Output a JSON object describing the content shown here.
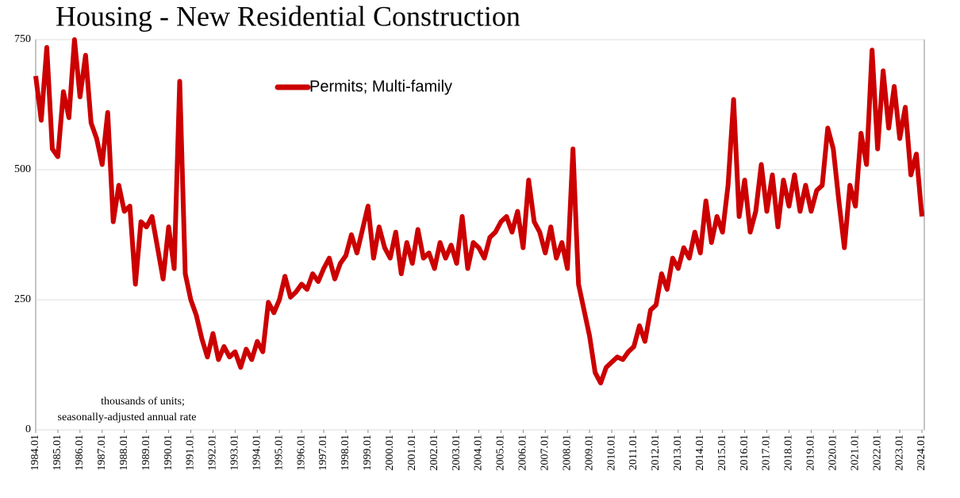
{
  "chart_data": {
    "type": "line",
    "title": "Housing - New Residential Construction",
    "annotation": [
      "thousands of units;",
      "seasonally-adjusted annual rate"
    ],
    "legend": "upper-center",
    "grid": true,
    "xlim": [
      1984,
      2024
    ],
    "ylim": [
      0,
      750
    ],
    "yticks": [
      0,
      250,
      500,
      750
    ],
    "xticks": [
      {
        "value": 1984,
        "label": "1984.01"
      },
      {
        "value": 1985,
        "label": "1985.01"
      },
      {
        "value": 1986,
        "label": "1986.01"
      },
      {
        "value": 1987,
        "label": "1987.01"
      },
      {
        "value": 1988,
        "label": "1988.01"
      },
      {
        "value": 1989,
        "label": "1989.01"
      },
      {
        "value": 1990,
        "label": "1990.01"
      },
      {
        "value": 1991,
        "label": "1991.01"
      },
      {
        "value": 1992,
        "label": "1992.01"
      },
      {
        "value": 1993,
        "label": "1993.01"
      },
      {
        "value": 1994,
        "label": "1994.01"
      },
      {
        "value": 1995,
        "label": "1995.01"
      },
      {
        "value": 1996,
        "label": "1996.01"
      },
      {
        "value": 1997,
        "label": "1997.01"
      },
      {
        "value": 1998,
        "label": "1998.01"
      },
      {
        "value": 1999,
        "label": "1999.01"
      },
      {
        "value": 2000,
        "label": "2000.01"
      },
      {
        "value": 2001,
        "label": "2001.01"
      },
      {
        "value": 2002,
        "label": "2002.01"
      },
      {
        "value": 2003,
        "label": "2003.01"
      },
      {
        "value": 2004,
        "label": "2004.01"
      },
      {
        "value": 2005,
        "label": "2005.01"
      },
      {
        "value": 2006,
        "label": "2006.01"
      },
      {
        "value": 2007,
        "label": "2007.01"
      },
      {
        "value": 2008,
        "label": "2008.01"
      },
      {
        "value": 2009,
        "label": "2009.01"
      },
      {
        "value": 2010,
        "label": "2010.01"
      },
      {
        "value": 2011,
        "label": "2011.01"
      },
      {
        "value": 2012,
        "label": "2012.01"
      },
      {
        "value": 2013,
        "label": "2013.01"
      },
      {
        "value": 2014,
        "label": "2014.01"
      },
      {
        "value": 2015,
        "label": "2015.01"
      },
      {
        "value": 2016,
        "label": "2016.01"
      },
      {
        "value": 2017,
        "label": "2017.01"
      },
      {
        "value": 2018,
        "label": "2018.01"
      },
      {
        "value": 2019,
        "label": "2019.01"
      },
      {
        "value": 2020,
        "label": "2020.01"
      },
      {
        "value": 2021,
        "label": "2021.01"
      },
      {
        "value": 2022,
        "label": "2022.01"
      },
      {
        "value": 2023,
        "label": "2023.01"
      },
      {
        "value": 2024,
        "label": "2024.01"
      }
    ],
    "x": [
      1984,
      1984.25,
      1984.5,
      1984.75,
      1985,
      1985.25,
      1985.5,
      1985.75,
      1986,
      1986.25,
      1986.5,
      1986.75,
      1987,
      1987.25,
      1987.5,
      1987.75,
      1988,
      1988.25,
      1988.5,
      1988.75,
      1989,
      1989.25,
      1989.5,
      1989.75,
      1990,
      1990.25,
      1990.5,
      1990.75,
      1991,
      1991.25,
      1991.5,
      1991.75,
      1992,
      1992.25,
      1992.5,
      1992.75,
      1993,
      1993.25,
      1993.5,
      1993.75,
      1994,
      1994.25,
      1994.5,
      1994.75,
      1995,
      1995.25,
      1995.5,
      1995.75,
      1996,
      1996.25,
      1996.5,
      1996.75,
      1997,
      1997.25,
      1997.5,
      1997.75,
      1998,
      1998.25,
      1998.5,
      1998.75,
      1999,
      1999.25,
      1999.5,
      1999.75,
      2000,
      2000.25,
      2000.5,
      2000.75,
      2001,
      2001.25,
      2001.5,
      2001.75,
      2002,
      2002.25,
      2002.5,
      2002.75,
      2003,
      2003.25,
      2003.5,
      2003.75,
      2004,
      2004.25,
      2004.5,
      2004.75,
      2005,
      2005.25,
      2005.5,
      2005.75,
      2006,
      2006.25,
      2006.5,
      2006.75,
      2007,
      2007.25,
      2007.5,
      2007.75,
      2008,
      2008.25,
      2008.5,
      2008.75,
      2009,
      2009.25,
      2009.5,
      2009.75,
      2010,
      2010.25,
      2010.5,
      2010.75,
      2011,
      2011.25,
      2011.5,
      2011.75,
      2012,
      2012.25,
      2012.5,
      2012.75,
      2013,
      2013.25,
      2013.5,
      2013.75,
      2014,
      2014.25,
      2014.5,
      2014.75,
      2015,
      2015.25,
      2015.5,
      2015.75,
      2016,
      2016.25,
      2016.5,
      2016.75,
      2017,
      2017.25,
      2017.5,
      2017.75,
      2018,
      2018.25,
      2018.5,
      2018.75,
      2019,
      2019.25,
      2019.5,
      2019.75,
      2020,
      2020.25,
      2020.5,
      2020.75,
      2021,
      2021.25,
      2021.5,
      2021.75,
      2022,
      2022.25,
      2022.5,
      2022.75,
      2023,
      2023.25,
      2023.5,
      2023.75,
      2024
    ],
    "series": [
      {
        "name": "Permits; Multi-family",
        "color": "#cc0000",
        "values": [
          680,
          595,
          735,
          540,
          525,
          650,
          600,
          750,
          640,
          720,
          590,
          560,
          510,
          610,
          400,
          470,
          420,
          430,
          280,
          400,
          390,
          410,
          350,
          290,
          390,
          310,
          670,
          300,
          250,
          220,
          175,
          140,
          185,
          135,
          160,
          140,
          150,
          120,
          155,
          135,
          170,
          150,
          245,
          225,
          250,
          295,
          255,
          265,
          280,
          270,
          300,
          285,
          310,
          330,
          290,
          320,
          335,
          375,
          340,
          385,
          430,
          330,
          390,
          350,
          330,
          380,
          300,
          360,
          320,
          385,
          330,
          340,
          310,
          360,
          330,
          355,
          320,
          410,
          310,
          360,
          350,
          330,
          370,
          380,
          400,
          410,
          380,
          420,
          350,
          480,
          400,
          380,
          340,
          390,
          330,
          360,
          310,
          540,
          280,
          230,
          180,
          110,
          90,
          120,
          130,
          140,
          135,
          150,
          160,
          200,
          170,
          230,
          240,
          300,
          270,
          330,
          310,
          350,
          330,
          380,
          340,
          440,
          360,
          410,
          380,
          470,
          635,
          410,
          480,
          380,
          420,
          510,
          420,
          490,
          390,
          480,
          430,
          490,
          420,
          470,
          420,
          460,
          470,
          580,
          540,
          440,
          350,
          470,
          430,
          570,
          510,
          730,
          540,
          690,
          580,
          660,
          560,
          620,
          490,
          530,
          410
        ]
      }
    ]
  }
}
